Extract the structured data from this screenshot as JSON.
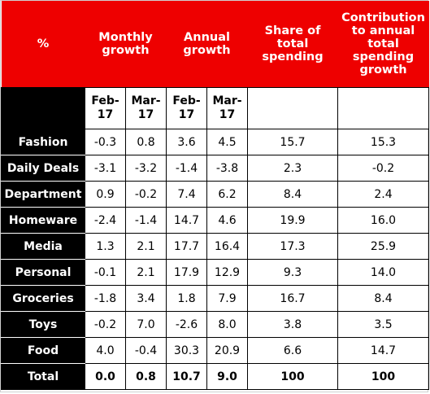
{
  "header": {
    "unit": "%",
    "monthly": "Monthly growth",
    "annual": "Annual growth",
    "share": "Share of total spending",
    "contribution": "Contribution to annual total spending growth"
  },
  "subheader": [
    "Feb-\n17",
    "Mar-\n17",
    "Feb-\n17",
    "Mar-\n17"
  ],
  "rows": [
    {
      "label": "Fashion",
      "values": [
        "-0.3",
        "0.8",
        "3.6",
        "4.5",
        "15.7",
        "15.3"
      ]
    },
    {
      "label": "Daily Deals",
      "values": [
        "-3.1",
        "-3.2",
        "-1.4",
        "-3.8",
        "2.3",
        "-0.2"
      ]
    },
    {
      "label": "Department",
      "values": [
        "0.9",
        "-0.2",
        "7.4",
        "6.2",
        "8.4",
        "2.4"
      ]
    },
    {
      "label": "Homeware",
      "values": [
        "-2.4",
        "-1.4",
        "14.7",
        "4.6",
        "19.9",
        "16.0"
      ]
    },
    {
      "label": "Media",
      "values": [
        "1.3",
        "2.1",
        "17.7",
        "16.4",
        "17.3",
        "25.9"
      ]
    },
    {
      "label": "Personal",
      "values": [
        "-0.1",
        "2.1",
        "17.9",
        "12.9",
        "9.3",
        "14.0"
      ]
    },
    {
      "label": "Groceries",
      "values": [
        "-1.8",
        "3.4",
        "1.8",
        "7.9",
        "16.7",
        "8.4"
      ]
    },
    {
      "label": "Toys",
      "values": [
        "-0.2",
        "7.0",
        "-2.6",
        "8.0",
        "3.8",
        "3.5"
      ]
    },
    {
      "label": "Food",
      "values": [
        "4.0",
        "-0.4",
        "30.3",
        "20.9",
        "6.6",
        "14.7"
      ]
    }
  ],
  "total": {
    "label": "Total",
    "values": [
      "0.0",
      "0.8",
      "10.7",
      "9.0",
      "100",
      "100"
    ]
  }
}
